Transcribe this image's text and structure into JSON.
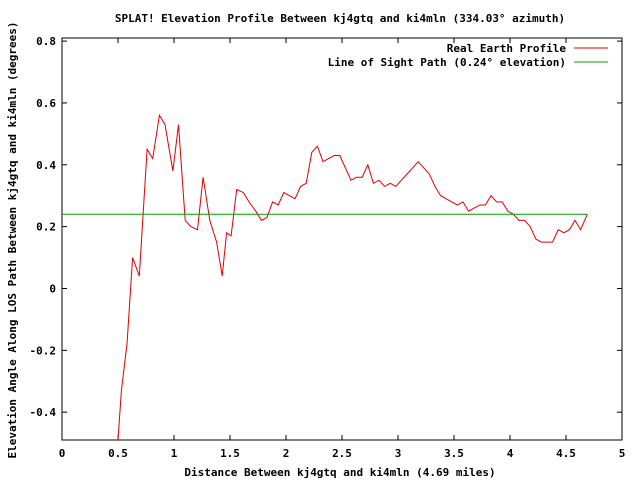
{
  "chart_data": {
    "type": "line",
    "title": "SPLAT! Elevation Profile Between kj4gtq and ki4mln (334.03° azimuth)",
    "xlabel": "Distance Between kj4gtq and ki4mln (4.69 miles)",
    "ylabel": "Elevation Angle Along LOS Path Between kj4gtq and ki4mln (degrees)",
    "xlim": [
      0,
      5
    ],
    "ylim": [
      -0.49,
      0.81
    ],
    "x_ticks": [
      {
        "value": 0,
        "label": "0"
      },
      {
        "value": 0.5,
        "label": "0.5"
      },
      {
        "value": 1,
        "label": "1"
      },
      {
        "value": 1.5,
        "label": "1.5"
      },
      {
        "value": 2,
        "label": "2"
      },
      {
        "value": 2.5,
        "label": "2.5"
      },
      {
        "value": 3,
        "label": "3"
      },
      {
        "value": 3.5,
        "label": "3.5"
      },
      {
        "value": 4,
        "label": "4"
      },
      {
        "value": 4.5,
        "label": "4.5"
      },
      {
        "value": 5,
        "label": "5"
      }
    ],
    "y_ticks": [
      {
        "value": -0.4,
        "label": "-0.4"
      },
      {
        "value": -0.2,
        "label": "-0.2"
      },
      {
        "value": 0,
        "label": "0"
      },
      {
        "value": 0.2,
        "label": "0.2"
      },
      {
        "value": 0.4,
        "label": "0.4"
      },
      {
        "value": 0.6,
        "label": "0.6"
      },
      {
        "value": 0.8,
        "label": "0.8"
      }
    ],
    "grid": false,
    "legend_position": "top-right",
    "series": [
      {
        "name": "Real Earth Profile",
        "color": "#dd0000",
        "points": [
          [
            0.5,
            -0.49
          ],
          [
            0.53,
            -0.33
          ],
          [
            0.58,
            -0.18
          ],
          [
            0.63,
            0.1
          ],
          [
            0.69,
            0.04
          ],
          [
            0.76,
            0.45
          ],
          [
            0.81,
            0.42
          ],
          [
            0.87,
            0.56
          ],
          [
            0.92,
            0.53
          ],
          [
            0.99,
            0.38
          ],
          [
            1.04,
            0.53
          ],
          [
            1.1,
            0.22
          ],
          [
            1.15,
            0.2
          ],
          [
            1.21,
            0.19
          ],
          [
            1.26,
            0.36
          ],
          [
            1.32,
            0.22
          ],
          [
            1.38,
            0.15
          ],
          [
            1.43,
            0.04
          ],
          [
            1.47,
            0.18
          ],
          [
            1.51,
            0.17
          ],
          [
            1.56,
            0.32
          ],
          [
            1.62,
            0.31
          ],
          [
            1.67,
            0.28
          ],
          [
            1.73,
            0.25
          ],
          [
            1.78,
            0.22
          ],
          [
            1.83,
            0.23
          ],
          [
            1.88,
            0.28
          ],
          [
            1.93,
            0.27
          ],
          [
            1.98,
            0.31
          ],
          [
            2.03,
            0.3
          ],
          [
            2.08,
            0.29
          ],
          [
            2.13,
            0.33
          ],
          [
            2.18,
            0.34
          ],
          [
            2.23,
            0.44
          ],
          [
            2.28,
            0.46
          ],
          [
            2.33,
            0.41
          ],
          [
            2.38,
            0.42
          ],
          [
            2.43,
            0.43
          ],
          [
            2.48,
            0.43
          ],
          [
            2.53,
            0.39
          ],
          [
            2.58,
            0.35
          ],
          [
            2.63,
            0.36
          ],
          [
            2.68,
            0.36
          ],
          [
            2.73,
            0.4
          ],
          [
            2.78,
            0.34
          ],
          [
            2.83,
            0.35
          ],
          [
            2.88,
            0.33
          ],
          [
            2.93,
            0.34
          ],
          [
            2.98,
            0.33
          ],
          [
            3.03,
            0.35
          ],
          [
            3.08,
            0.37
          ],
          [
            3.13,
            0.39
          ],
          [
            3.18,
            0.41
          ],
          [
            3.23,
            0.39
          ],
          [
            3.28,
            0.37
          ],
          [
            3.33,
            0.33
          ],
          [
            3.38,
            0.3
          ],
          [
            3.43,
            0.29
          ],
          [
            3.48,
            0.28
          ],
          [
            3.53,
            0.27
          ],
          [
            3.58,
            0.28
          ],
          [
            3.63,
            0.25
          ],
          [
            3.68,
            0.26
          ],
          [
            3.73,
            0.27
          ],
          [
            3.78,
            0.27
          ],
          [
            3.83,
            0.3
          ],
          [
            3.88,
            0.28
          ],
          [
            3.93,
            0.28
          ],
          [
            3.98,
            0.25
          ],
          [
            4.03,
            0.24
          ],
          [
            4.08,
            0.22
          ],
          [
            4.13,
            0.22
          ],
          [
            4.18,
            0.2
          ],
          [
            4.23,
            0.16
          ],
          [
            4.28,
            0.15
          ],
          [
            4.33,
            0.15
          ],
          [
            4.38,
            0.15
          ],
          [
            4.43,
            0.19
          ],
          [
            4.48,
            0.18
          ],
          [
            4.53,
            0.19
          ],
          [
            4.58,
            0.22
          ],
          [
            4.63,
            0.19
          ],
          [
            4.69,
            0.24
          ]
        ]
      },
      {
        "name": "Line of Sight Path (0.24° elevation)",
        "color": "#00a000",
        "points": [
          [
            0,
            0.24
          ],
          [
            4.69,
            0.24
          ]
        ]
      }
    ]
  }
}
